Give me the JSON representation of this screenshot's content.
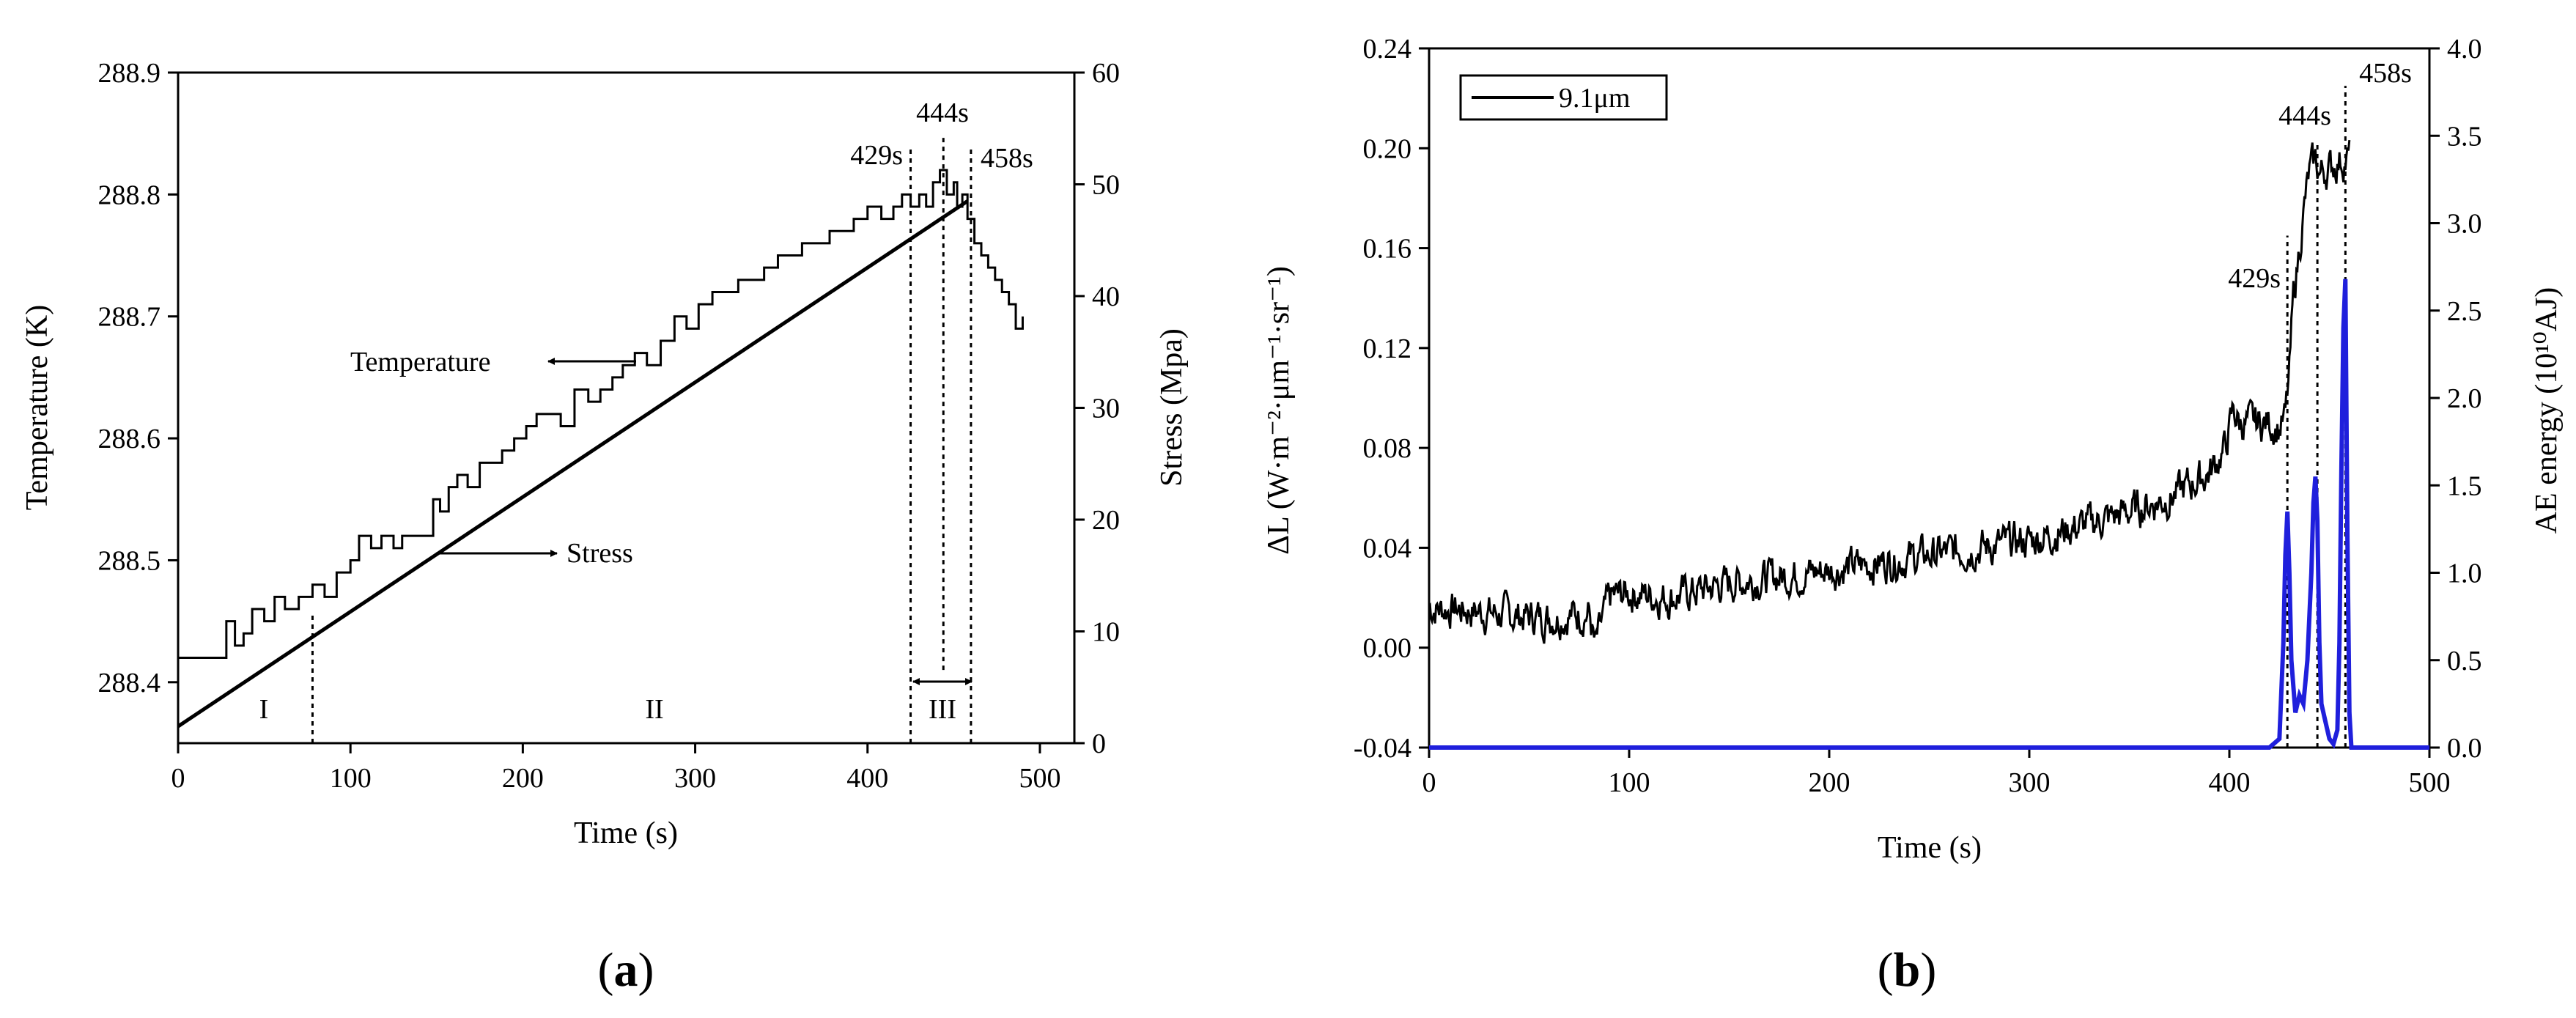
{
  "chart_data": [
    {
      "panel": "(a)",
      "type": "line",
      "panel_label_prefix": "(",
      "panel_label_letter": "a",
      "panel_label_suffix": ")",
      "xlabel": "Time (s)",
      "ylabel_left": "Temperature (K)",
      "ylabel_right": "Stress (Mpa)",
      "xlim": [
        0,
        520
      ],
      "ylim_left": [
        288.35,
        288.9
      ],
      "ylim_right": [
        0,
        60
      ],
      "x_ticks": [
        0,
        100,
        200,
        300,
        400,
        500
      ],
      "y_left_ticks": [
        "288.4",
        "288.5",
        "288.6",
        "288.7",
        "288.8",
        "288.9"
      ],
      "y_left_tick_values": [
        288.4,
        288.5,
        288.6,
        288.7,
        288.8,
        288.9
      ],
      "y_right_ticks": [
        0,
        10,
        20,
        30,
        40,
        50,
        60
      ],
      "series": [
        {
          "name": "Temperature",
          "axis": "left",
          "style": "step",
          "x": [
            0,
            25,
            28,
            33,
            38,
            43,
            50,
            56,
            62,
            70,
            78,
            85,
            92,
            100,
            105,
            112,
            118,
            125,
            130,
            136,
            142,
            148,
            152,
            157,
            162,
            168,
            175,
            182,
            188,
            195,
            202,
            208,
            215,
            222,
            230,
            238,
            245,
            252,
            258,
            265,
            272,
            280,
            288,
            295,
            302,
            310,
            318,
            325,
            330,
            340,
            348,
            355,
            362,
            370,
            378,
            385,
            392,
            400,
            408,
            415,
            420,
            425,
            430,
            434,
            438,
            442,
            446,
            450,
            452,
            455,
            458,
            462,
            466,
            470,
            474,
            478,
            482,
            486,
            490
          ],
          "y": [
            288.42,
            288.42,
            288.45,
            288.43,
            288.44,
            288.46,
            288.45,
            288.47,
            288.46,
            288.47,
            288.48,
            288.47,
            288.49,
            288.5,
            288.52,
            288.51,
            288.52,
            288.51,
            288.52,
            288.52,
            288.52,
            288.55,
            288.54,
            288.56,
            288.57,
            288.56,
            288.58,
            288.58,
            288.59,
            288.6,
            288.61,
            288.62,
            288.62,
            288.61,
            288.64,
            288.63,
            288.64,
            288.65,
            288.66,
            288.67,
            288.66,
            288.68,
            288.7,
            288.69,
            288.71,
            288.72,
            288.72,
            288.73,
            288.73,
            288.74,
            288.75,
            288.75,
            288.76,
            288.76,
            288.77,
            288.77,
            288.78,
            288.79,
            288.78,
            288.79,
            288.8,
            288.79,
            288.8,
            288.79,
            288.81,
            288.82,
            288.8,
            288.81,
            288.79,
            288.8,
            288.78,
            288.76,
            288.75,
            288.74,
            288.73,
            288.72,
            288.71,
            288.69,
            288.7
          ]
        },
        {
          "name": "Stress",
          "axis": "right",
          "style": "line",
          "x": [
            0,
            458
          ],
          "y": [
            1.5,
            48.5
          ]
        }
      ],
      "vlines_dotted": [
        {
          "x": 78,
          "y_from": 288.35,
          "y_to": 288.455
        },
        {
          "x": 425,
          "y_from": 288.35,
          "y_to": 288.84
        },
        {
          "x": 444,
          "y_from": 288.41,
          "y_to": 288.85
        },
        {
          "x": 460,
          "y_from": 288.35,
          "y_to": 288.84
        }
      ],
      "annotations": {
        "t429": "429s",
        "t444": "444s",
        "t458": "458s",
        "temperature": "Temperature",
        "stress": "Stress",
        "stage_I": "I",
        "stage_II": "II",
        "stage_III": "III"
      }
    },
    {
      "panel": "(b)",
      "type": "line",
      "panel_label_prefix": "(",
      "panel_label_letter": "b",
      "panel_label_suffix": ")",
      "xlabel": "Time (s)",
      "ylabel_left": "ΔL (W·m⁻²·μm⁻¹·sr⁻¹)",
      "ylabel_right": "AE energy (10¹⁰AJ)",
      "xlim": [
        0,
        500
      ],
      "ylim_left": [
        -0.04,
        0.24
      ],
      "ylim_right": [
        0,
        4.0
      ],
      "x_ticks": [
        0,
        100,
        200,
        300,
        400,
        500
      ],
      "y_left_ticks": [
        "-0.04",
        "0.00",
        "0.04",
        "0.08",
        "0.12",
        "0.16",
        "0.20",
        "0.24"
      ],
      "y_left_tick_values": [
        -0.04,
        0.0,
        0.04,
        0.08,
        0.12,
        0.16,
        0.2,
        0.24
      ],
      "y_right_ticks": [
        "0.0",
        "0.5",
        "1.0",
        "1.5",
        "2.0",
        "2.5",
        "3.0",
        "3.5",
        "4.0"
      ],
      "y_right_tick_values": [
        0,
        0.5,
        1.0,
        1.5,
        2.0,
        2.5,
        3.0,
        3.5,
        4.0
      ],
      "legend": "9.1μm",
      "legend_position": "top-left",
      "series": [
        {
          "name": "9.1μm",
          "axis": "left",
          "color": "#000000",
          "noise_amplitude": 0.006,
          "x": [
            0,
            20,
            40,
            60,
            80,
            83,
            90,
            100,
            120,
            150,
            200,
            250,
            300,
            340,
            370,
            390,
            398,
            402,
            405,
            420,
            425,
            428,
            430,
            432,
            435,
            438,
            440,
            443,
            445,
            450,
            455,
            460
          ],
          "y": [
            0.016,
            0.015,
            0.013,
            0.012,
            0.014,
            0.0,
            0.02,
            0.022,
            0.02,
            0.026,
            0.031,
            0.037,
            0.043,
            0.052,
            0.06,
            0.07,
            0.08,
            0.095,
            0.09,
            0.09,
            0.088,
            0.092,
            0.11,
            0.14,
            0.16,
            0.18,
            0.19,
            0.195,
            0.19,
            0.192,
            0.195,
            0.196
          ]
        },
        {
          "name": "AE energy",
          "axis": "right",
          "color": "#1f1fdc",
          "x": [
            0,
            420,
            425,
            427,
            428,
            429,
            430,
            431,
            433,
            435,
            437,
            439,
            441,
            442,
            443,
            444,
            445,
            446,
            448,
            450,
            452,
            454,
            455,
            456,
            457,
            458,
            459,
            460,
            461,
            500
          ],
          "y": [
            0,
            0,
            0.05,
            0.6,
            1.1,
            1.35,
            1.0,
            0.5,
            0.2,
            0.3,
            0.25,
            0.5,
            1.0,
            1.4,
            1.55,
            1.3,
            0.6,
            0.25,
            0.15,
            0.05,
            0.02,
            0.1,
            0.6,
            1.6,
            2.4,
            2.68,
            1.2,
            0.2,
            0.0,
            0
          ]
        }
      ],
      "vlines_dotted": [
        {
          "x": 429,
          "y_from": -0.04,
          "y_to": 0.165
        },
        {
          "x": 444,
          "y_from": -0.04,
          "y_to": 0.202
        },
        {
          "x": 458,
          "y_from": -0.04,
          "y_to": 0.225
        }
      ],
      "annotations": {
        "t429": "429s",
        "t444": "444s",
        "t458": "458s"
      }
    }
  ]
}
